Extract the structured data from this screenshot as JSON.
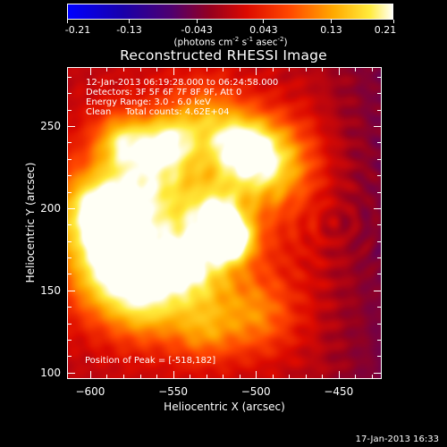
{
  "colorbar": {
    "tick_labels": [
      "-0.21",
      "-0.13",
      "-0.043",
      "0.043",
      "0.13",
      "0.21"
    ],
    "tick_values": [
      -0.21,
      -0.13,
      -0.043,
      0.043,
      0.13,
      0.21
    ],
    "vmin": -0.21,
    "vmax": 0.21,
    "units_prefix": "(photons cm",
    "units_sup1": "-2",
    "units_mid1": " s",
    "units_sup2": "-1",
    "units_mid2": " asec",
    "units_sup3": "-2",
    "units_suffix": ")",
    "colormap": "rainbow/fire (blue-purple-red-orange-yellow-white)"
  },
  "title": "Reconstructed RHESSI Image",
  "info": {
    "line1": "12-Jan-2013 06:19:28.000 to 06:24:58.000",
    "line2": "Detectors: 3F 5F 6F 7F 8F 9F, Att 0",
    "line3": "Energy Range: 3.0 - 6.0 keV",
    "line4": "Clean     Total counts: 4.62E+04",
    "peak": "Position of Peak = [-518,182]"
  },
  "axes": {
    "xlabel": "Heliocentric X (arcsec)",
    "ylabel": "Heliocentric Y (arcsec)",
    "xlim": [
      -614,
      -424
    ],
    "ylim": [
      96,
      286
    ],
    "xticks": [
      -600,
      -550,
      -500,
      -450
    ],
    "xtick_labels": [
      "−600",
      "−550",
      "−500",
      "−450"
    ],
    "yticks": [
      100,
      150,
      200,
      250
    ],
    "ytick_labels": [
      "100",
      "150",
      "200",
      "250"
    ]
  },
  "peak_position": {
    "x": -518,
    "y": 182
  },
  "timestamp": "17-Jan-2013 16:33"
}
